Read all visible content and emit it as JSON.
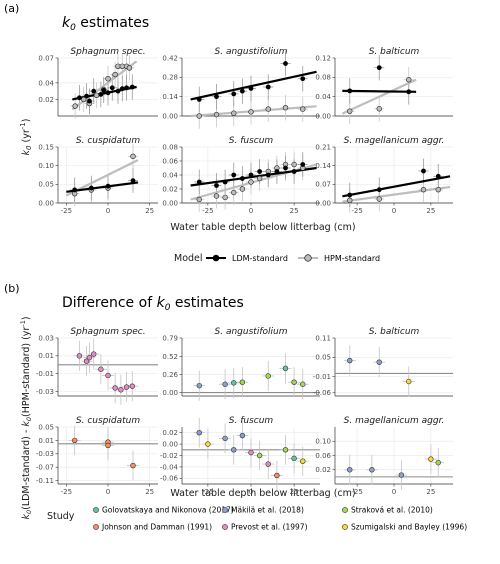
{
  "figure": {
    "label_a": "(a)",
    "label_b": "(b)",
    "title_a": "k0 estimates",
    "title_b": "Difference of k0 estimates",
    "ylabel_a": "k0 (yr⁻¹)",
    "ylabel_b": "k0(LDM-standard) - k0(HPM-standard) (yr⁻¹)",
    "xlabel": "Water table depth below litterbag (cm)",
    "legend_model_title": "Model",
    "legend_study_title": "Study"
  },
  "chart_data": [
    {
      "type": "scatter",
      "title": "k0 estimates",
      "x_label": "Water table depth below litterbag (cm)",
      "y_label": "k0 (yr⁻¹)",
      "series_names": [
        "LDM-standard",
        "HPM-standard"
      ],
      "colors": {
        "LDM-standard": "#000000",
        "HPM-standard": "#bdbdbd"
      },
      "panels": [
        {
          "name": "Sphagnum spec.",
          "xlim": [
            -30,
            40
          ],
          "xticks": [],
          "ylim": [
            0.0,
            0.07
          ],
          "yticks": [
            0.02,
            0.04,
            0.07
          ],
          "ldm": {
            "x": [
              -15,
              -10,
              -8,
              -5,
              0,
              2,
              5,
              8,
              12,
              15,
              18,
              22
            ],
            "y": [
              0.022,
              0.024,
              0.018,
              0.03,
              0.026,
              0.031,
              0.028,
              0.034,
              0.03,
              0.033,
              0.034,
              0.035
            ]
          },
          "hpm": {
            "x": [
              -18,
              -12,
              -8,
              -3,
              2,
              5,
              10,
              12,
              15,
              18,
              20
            ],
            "y": [
              0.012,
              0.02,
              0.015,
              0.025,
              0.032,
              0.045,
              0.05,
              0.06,
              0.06,
              0.06,
              0.058
            ]
          },
          "fit_ldm": [
            [
              -20,
              0.02
            ],
            [
              25,
              0.035
            ]
          ],
          "fit_hpm": [
            [
              -20,
              0.008
            ],
            [
              25,
              0.066
            ]
          ]
        },
        {
          "name": "S. angustifolium",
          "xlim": [
            -40,
            40
          ],
          "xticks": [],
          "ylim": [
            0.0,
            0.42
          ],
          "yticks": [
            0.0,
            0.14,
            0.28,
            0.42
          ],
          "ldm": {
            "x": [
              -30,
              -20,
              -10,
              -5,
              0,
              10,
              20,
              30
            ],
            "y": [
              0.12,
              0.14,
              0.16,
              0.18,
              0.2,
              0.21,
              0.38,
              0.27
            ]
          },
          "hpm": {
            "x": [
              -30,
              -20,
              -10,
              0,
              10,
              20,
              30
            ],
            "y": [
              0.0,
              0.01,
              0.02,
              0.03,
              0.05,
              0.06,
              0.05
            ]
          },
          "fit_ldm": [
            [
              -35,
              0.12
            ],
            [
              38,
              0.32
            ]
          ],
          "fit_hpm": [
            [
              -35,
              0.0
            ],
            [
              38,
              0.07
            ]
          ]
        },
        {
          "name": "S. balticum",
          "xlim": [
            -40,
            40
          ],
          "xticks": [],
          "ylim": [
            0.0,
            0.12
          ],
          "yticks": [
            0.0,
            0.04,
            0.08,
            0.12
          ],
          "ldm": {
            "x": [
              -30,
              -10,
              10
            ],
            "y": [
              0.052,
              0.1,
              0.05
            ]
          },
          "hpm": {
            "x": [
              -30,
              -10,
              10
            ],
            "y": [
              0.01,
              0.015,
              0.075
            ]
          },
          "fit_ldm": [
            [
              -35,
              0.052
            ],
            [
              15,
              0.05
            ]
          ],
          "fit_hpm": [
            [
              -35,
              0.005
            ],
            [
              15,
              0.075
            ]
          ]
        },
        {
          "name": "S. cuspidatum",
          "xlim": [
            -30,
            30
          ],
          "xticks": [
            -25,
            0,
            25
          ],
          "ylim": [
            0.0,
            0.15
          ],
          "yticks": [
            0.0,
            0.05,
            0.1,
            0.15
          ],
          "ldm": {
            "x": [
              -20,
              -10,
              0,
              15
            ],
            "y": [
              0.035,
              0.04,
              0.045,
              0.06
            ]
          },
          "hpm": {
            "x": [
              -20,
              -10,
              0,
              15
            ],
            "y": [
              0.025,
              0.035,
              0.04,
              0.125
            ]
          },
          "fit_ldm": [
            [
              -25,
              0.03
            ],
            [
              18,
              0.055
            ]
          ],
          "fit_hpm": [
            [
              -25,
              0.02
            ],
            [
              18,
              0.115
            ]
          ]
        },
        {
          "name": "S. fuscum",
          "xlim": [
            -40,
            40
          ],
          "xticks": [
            -25,
            0,
            25
          ],
          "ylim": [
            0.0,
            0.08
          ],
          "yticks": [
            0.0,
            0.02,
            0.04,
            0.06,
            0.08
          ],
          "ldm": {
            "x": [
              -30,
              -20,
              -15,
              -10,
              -5,
              0,
              5,
              10,
              15,
              20,
              25,
              30
            ],
            "y": [
              0.03,
              0.025,
              0.03,
              0.04,
              0.035,
              0.04,
              0.045,
              0.04,
              0.045,
              0.05,
              0.045,
              0.055
            ]
          },
          "hpm": {
            "x": [
              -30,
              -20,
              -15,
              -10,
              -5,
              0,
              5,
              10,
              15,
              20,
              25,
              30
            ],
            "y": [
              0.005,
              0.01,
              0.008,
              0.015,
              0.02,
              0.03,
              0.035,
              0.045,
              0.05,
              0.055,
              0.055,
              0.05
            ]
          },
          "fit_ldm": [
            [
              -35,
              0.025
            ],
            [
              38,
              0.05
            ]
          ],
          "fit_hpm": [
            [
              -35,
              0.005
            ],
            [
              38,
              0.055
            ]
          ]
        },
        {
          "name": "S. magellanicum aggr.",
          "xlim": [
            -40,
            40
          ],
          "xticks": [
            -25,
            0,
            25
          ],
          "ylim": [
            0.0,
            0.21
          ],
          "yticks": [
            0.0,
            0.07,
            0.14,
            0.21
          ],
          "ldm": {
            "x": [
              -30,
              -10,
              20,
              30
            ],
            "y": [
              0.03,
              0.05,
              0.12,
              0.1
            ]
          },
          "hpm": {
            "x": [
              -30,
              -10,
              20,
              30
            ],
            "y": [
              0.01,
              0.015,
              0.05,
              0.05
            ]
          },
          "fit_ldm": [
            [
              -35,
              0.025
            ],
            [
              38,
              0.1
            ]
          ],
          "fit_hpm": [
            [
              -35,
              0.005
            ],
            [
              38,
              0.06
            ]
          ]
        }
      ]
    },
    {
      "type": "scatter",
      "title": "Difference of k0 estimates",
      "x_label": "Water table depth below litterbag (cm)",
      "y_label": "k0(LDM-standard) - k0(HPM-standard) (yr⁻¹)",
      "studies": [
        "Golovatskaya and Nikonova (2017)",
        "Johnson and Damman (1991)",
        "Mäkilä et al. (2018)",
        "Prevost et al. (1997)",
        "Straková et al. (2010)",
        "Szumigalski and Bayley (1996)"
      ],
      "study_colors": {
        "Golovatskaya and Nikonova (2017)": "#66c2a5",
        "Johnson and Damman (1991)": "#fc8d62",
        "Mäkilä et al. (2018)": "#8da0cb",
        "Prevost et al. (1997)": "#e78ac3",
        "Straková et al. (2010)": "#a6d854",
        "Szumigalski and Bayley (1996)": "#ffd92f"
      },
      "panels": [
        {
          "name": "Sphagnum spec.",
          "xlim": [
            -30,
            40
          ],
          "xticks": [],
          "ylim": [
            -0.035,
            0.03
          ],
          "yticks": [
            -0.03,
            -0.01,
            0.01,
            0.03
          ],
          "hline": 0.0,
          "points": [
            {
              "x": -15,
              "y": 0.01,
              "study": "Prevost et al. (1997)"
            },
            {
              "x": -10,
              "y": 0.004,
              "study": "Prevost et al. (1997)"
            },
            {
              "x": -8,
              "y": 0.008,
              "study": "Prevost et al. (1997)"
            },
            {
              "x": -5,
              "y": 0.012,
              "study": "Prevost et al. (1997)"
            },
            {
              "x": 0,
              "y": -0.005,
              "study": "Prevost et al. (1997)"
            },
            {
              "x": 5,
              "y": -0.012,
              "study": "Prevost et al. (1997)"
            },
            {
              "x": 10,
              "y": -0.026,
              "study": "Prevost et al. (1997)"
            },
            {
              "x": 14,
              "y": -0.028,
              "study": "Prevost et al. (1997)"
            },
            {
              "x": 18,
              "y": -0.025,
              "study": "Prevost et al. (1997)"
            },
            {
              "x": 22,
              "y": -0.024,
              "study": "Prevost et al. (1997)"
            }
          ]
        },
        {
          "name": "S. angustifolium",
          "xlim": [
            -40,
            40
          ],
          "xticks": [],
          "ylim": [
            -0.05,
            0.79
          ],
          "yticks": [
            0.0,
            0.26,
            0.52,
            0.79
          ],
          "hline": 0.0,
          "points": [
            {
              "x": -30,
              "y": 0.1,
              "study": "Mäkilä et al. (2018)"
            },
            {
              "x": -15,
              "y": 0.12,
              "study": "Mäkilä et al. (2018)"
            },
            {
              "x": -10,
              "y": 0.14,
              "study": "Golovatskaya and Nikonova (2017)"
            },
            {
              "x": -5,
              "y": 0.15,
              "study": "Straková et al. (2010)"
            },
            {
              "x": 10,
              "y": 0.24,
              "study": "Straková et al. (2010)"
            },
            {
              "x": 20,
              "y": 0.35,
              "study": "Golovatskaya and Nikonova (2017)"
            },
            {
              "x": 25,
              "y": 0.15,
              "study": "Straková et al. (2010)"
            },
            {
              "x": 30,
              "y": 0.12,
              "study": "Straková et al. (2010)"
            }
          ]
        },
        {
          "name": "S. balticum",
          "xlim": [
            -40,
            40
          ],
          "xticks": [],
          "ylim": [
            -0.07,
            0.11
          ],
          "yticks": [
            -0.06,
            -0.01,
            0.05,
            0.11
          ],
          "hline": 0.0,
          "points": [
            {
              "x": -30,
              "y": 0.04,
              "study": "Mäkilä et al. (2018)"
            },
            {
              "x": -10,
              "y": 0.035,
              "study": "Mäkilä et al. (2018)"
            },
            {
              "x": 10,
              "y": -0.025,
              "study": "Szumigalski and Bayley (1996)"
            }
          ]
        },
        {
          "name": "S. cuspidatum",
          "xlim": [
            -30,
            30
          ],
          "xticks": [
            -25,
            0,
            25
          ],
          "ylim": [
            -0.12,
            0.05
          ],
          "yticks": [
            -0.11,
            -0.07,
            -0.03,
            0.01,
            0.05
          ],
          "hline": 0.0,
          "points": [
            {
              "x": -20,
              "y": 0.01,
              "study": "Johnson and Damman (1991)"
            },
            {
              "x": 0,
              "y": 0.005,
              "study": "Johnson and Damman (1991)"
            },
            {
              "x": 0,
              "y": -0.005,
              "study": "Johnson and Damman (1991)"
            },
            {
              "x": 15,
              "y": -0.065,
              "study": "Johnson and Damman (1991)"
            }
          ]
        },
        {
          "name": "S. fuscum",
          "xlim": [
            -40,
            40
          ],
          "xticks": [
            -25,
            0,
            25
          ],
          "ylim": [
            -0.07,
            0.03
          ],
          "yticks": [
            -0.06,
            -0.04,
            -0.02,
            0.0,
            0.02
          ],
          "hline": -0.01,
          "points": [
            {
              "x": -30,
              "y": 0.02,
              "study": "Mäkilä et al. (2018)"
            },
            {
              "x": -25,
              "y": 0.0,
              "study": "Szumigalski and Bayley (1996)"
            },
            {
              "x": -15,
              "y": 0.01,
              "study": "Mäkilä et al. (2018)"
            },
            {
              "x": -10,
              "y": -0.01,
              "study": "Mäkilä et al. (2018)"
            },
            {
              "x": -5,
              "y": 0.015,
              "study": "Mäkilä et al. (2018)"
            },
            {
              "x": 0,
              "y": -0.015,
              "study": "Prevost et al. (1997)"
            },
            {
              "x": 5,
              "y": -0.02,
              "study": "Straková et al. (2010)"
            },
            {
              "x": 10,
              "y": -0.035,
              "study": "Prevost et al. (1997)"
            },
            {
              "x": 15,
              "y": -0.055,
              "study": "Johnson and Damman (1991)"
            },
            {
              "x": 20,
              "y": -0.01,
              "study": "Straková et al. (2010)"
            },
            {
              "x": 25,
              "y": -0.025,
              "study": "Golovatskaya and Nikonova (2017)"
            },
            {
              "x": 30,
              "y": -0.03,
              "study": "Szumigalski and Bayley (1996)"
            }
          ]
        },
        {
          "name": "S. magellanicum aggr.",
          "xlim": [
            -40,
            40
          ],
          "xticks": [
            -25,
            0,
            25
          ],
          "ylim": [
            -0.02,
            0.14
          ],
          "yticks": [
            0.02,
            0.06,
            0.1
          ],
          "hline": 0.0,
          "points": [
            {
              "x": -30,
              "y": 0.02,
              "study": "Mäkilä et al. (2018)"
            },
            {
              "x": -15,
              "y": 0.02,
              "study": "Mäkilä et al. (2018)"
            },
            {
              "x": 5,
              "y": 0.005,
              "study": "Mäkilä et al. (2018)"
            },
            {
              "x": 25,
              "y": 0.05,
              "study": "Szumigalski and Bayley (1996)"
            },
            {
              "x": 30,
              "y": 0.04,
              "study": "Straková et al. (2010)"
            }
          ]
        }
      ]
    }
  ]
}
